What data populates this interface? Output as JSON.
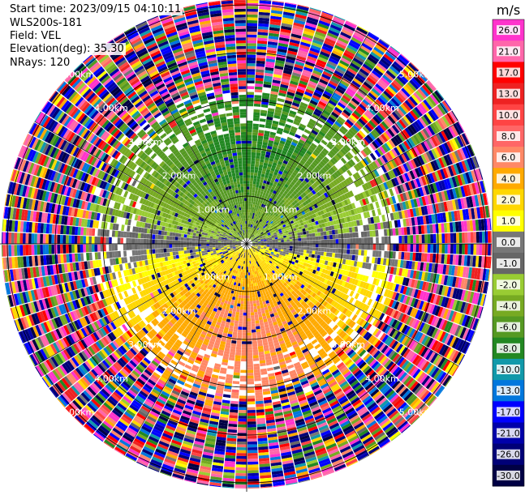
{
  "header": {
    "start_time": "Start time: 2023/09/15 04:10:11",
    "instrument": "WLS200s-181",
    "field": "Field: VEL",
    "elevation": "Elevation(deg): 35.30",
    "nrays": "NRays: 120"
  },
  "chart_data": {
    "type": "ppi_scan",
    "title": "",
    "n_rays": 120,
    "range_unit": "km",
    "max_range_km": 5.2,
    "range_rings_km": [
      1.0,
      2.0,
      3.0,
      4.0,
      5.0
    ],
    "range_labels": [
      "1.00km",
      "2.00km",
      "3.00km",
      "4.00km",
      "5.00km"
    ],
    "colorbar": {
      "title": "m/s",
      "vmin": -30,
      "vmax": 30,
      "ticks": [
        "26.0",
        "21.0",
        "17.0",
        "13.0",
        "10.0",
        "8.0",
        "6.0",
        "4.0",
        "2.0",
        "1.0",
        "0.0",
        "-1.0",
        "-2.0",
        "-4.0",
        "-6.0",
        "-8.0",
        "-10.0",
        "-13.0",
        "-17.0",
        "-21.0",
        "-26.0",
        "-30.0"
      ],
      "tick_values": [
        26,
        21,
        17,
        13,
        10,
        8,
        6,
        4,
        2,
        1,
        0,
        -1,
        -2,
        -4,
        -6,
        -8,
        -10,
        -13,
        -17,
        -21,
        -26,
        -30
      ],
      "bins": [
        {
          "min": 26,
          "max": 30,
          "color": "#ff33cc"
        },
        {
          "min": 21,
          "max": 26,
          "color": "#ff66aa"
        },
        {
          "min": 17,
          "max": 21,
          "color": "#ff0000"
        },
        {
          "min": 13,
          "max": 17,
          "color": "#ee2222"
        },
        {
          "min": 10,
          "max": 13,
          "color": "#ff4444"
        },
        {
          "min": 8,
          "max": 10,
          "color": "#ff6666"
        },
        {
          "min": 6,
          "max": 8,
          "color": "#ff8866"
        },
        {
          "min": 4,
          "max": 6,
          "color": "#ffaa00"
        },
        {
          "min": 2,
          "max": 4,
          "color": "#ffd700"
        },
        {
          "min": 1,
          "max": 2,
          "color": "#ffff00"
        },
        {
          "min": 0,
          "max": 1,
          "color": "#777777"
        },
        {
          "min": -1,
          "max": 0,
          "color": "#666666"
        },
        {
          "min": -2,
          "max": -1,
          "color": "#99cc33"
        },
        {
          "min": -4,
          "max": -2,
          "color": "#77aa22"
        },
        {
          "min": -6,
          "max": -4,
          "color": "#559922"
        },
        {
          "min": -8,
          "max": -6,
          "color": "#228822"
        },
        {
          "min": -10,
          "max": -8,
          "color": "#1199aa"
        },
        {
          "min": -13,
          "max": -10,
          "color": "#0077dd"
        },
        {
          "min": -17,
          "max": -13,
          "color": "#0000ff"
        },
        {
          "min": -21,
          "max": -17,
          "color": "#0000aa"
        },
        {
          "min": -26,
          "max": -21,
          "color": "#000077"
        },
        {
          "min": -30,
          "max": -26,
          "color": "#000044"
        }
      ]
    },
    "pattern_description": "Inner ranges: negative (green) velocities toward north, positive (yellow/orange) toward south, near-zero (grey) bands east-west; noisy random colors beyond ~3 km."
  }
}
